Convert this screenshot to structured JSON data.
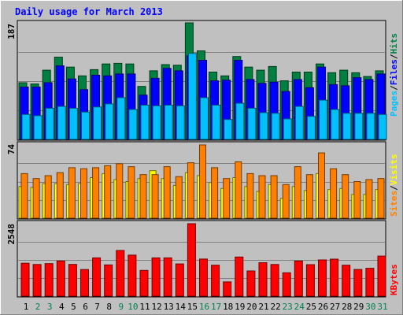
{
  "chart_data": [
    {
      "type": "bar",
      "panel": "pages-files-hits",
      "title": "Daily usage for March 2013",
      "categories": [
        "1",
        "2",
        "3",
        "4",
        "5",
        "6",
        "7",
        "8",
        "9",
        "10",
        "11",
        "12",
        "13",
        "14",
        "15",
        "16",
        "17",
        "18",
        "19",
        "20",
        "21",
        "22",
        "23",
        "24",
        "25",
        "26",
        "27",
        "28",
        "29",
        "30",
        "31"
      ],
      "ylim": [
        0,
        187
      ],
      "ymax_label": "187",
      "series": [
        {
          "name": "Hits",
          "color": "#008040",
          "values": [
            91,
            89,
            111,
            132,
            116,
            102,
            112,
            121,
            122,
            121,
            85,
            110,
            120,
            119,
            187,
            142,
            108,
            102,
            133,
            116,
            111,
            117,
            94,
            108,
            108,
            121,
            107,
            111,
            107,
            101,
            110
          ]
        },
        {
          "name": "Files",
          "color": "#0000ff",
          "values": [
            84,
            84,
            91,
            118,
            97,
            80,
            103,
            102,
            105,
            105,
            71,
            98,
            114,
            110,
            134,
            127,
            94,
            95,
            127,
            96,
            90,
            92,
            77,
            96,
            83,
            116,
            88,
            86,
            99,
            96,
            105
          ]
        },
        {
          "name": "Pages",
          "color": "#00c0ff",
          "values": [
            40,
            38,
            50,
            53,
            50,
            44,
            52,
            57,
            67,
            48,
            55,
            54,
            55,
            54,
            138,
            67,
            55,
            32,
            58,
            50,
            43,
            42,
            33,
            53,
            37,
            63,
            48,
            42,
            42,
            42,
            40
          ]
        }
      ]
    },
    {
      "type": "bar",
      "panel": "visits-sites",
      "categories": [
        "1",
        "2",
        "3",
        "4",
        "5",
        "6",
        "7",
        "8",
        "9",
        "10",
        "11",
        "12",
        "13",
        "14",
        "15",
        "16",
        "17",
        "18",
        "19",
        "20",
        "21",
        "22",
        "23",
        "24",
        "25",
        "26",
        "27",
        "28",
        "29",
        "30",
        "31"
      ],
      "ylim": [
        0,
        74
      ],
      "ymax_label": "74",
      "series": [
        {
          "name": "Visits",
          "color": "#ffff00",
          "values": [
            32,
            31,
            35,
            35,
            34,
            35,
            41,
            45,
            39,
            37,
            40,
            48,
            40,
            33,
            46,
            43,
            36,
            30,
            41,
            32,
            27,
            34,
            20,
            32,
            28,
            45,
            29,
            30,
            24,
            24,
            29
          ]
        },
        {
          "name": "Sites",
          "color": "#ff8000",
          "values": [
            45,
            40,
            43,
            46,
            51,
            50,
            51,
            53,
            55,
            52,
            44,
            44,
            52,
            42,
            56,
            74,
            51,
            40,
            57,
            45,
            43,
            43,
            34,
            52,
            44,
            66,
            50,
            44,
            37,
            39,
            40
          ]
        }
      ]
    },
    {
      "type": "bar",
      "panel": "kbytes",
      "categories": [
        "1",
        "2",
        "3",
        "4",
        "5",
        "6",
        "7",
        "8",
        "9",
        "10",
        "11",
        "12",
        "13",
        "14",
        "15",
        "16",
        "17",
        "18",
        "19",
        "20",
        "21",
        "22",
        "23",
        "24",
        "25",
        "26",
        "27",
        "28",
        "29",
        "30",
        "31"
      ],
      "ylim": [
        0,
        2548
      ],
      "ymax_label": "2548",
      "series": [
        {
          "name": "KBytes",
          "color": "#ff0000",
          "values": [
            1158,
            1112,
            1144,
            1235,
            1116,
            937,
            1347,
            1100,
            1606,
            1442,
            906,
            1347,
            1347,
            1134,
            2548,
            1304,
            1088,
            502,
            1377,
            885,
            1178,
            1112,
            822,
            1235,
            1108,
            1273,
            1303,
            1088,
            939,
            981,
            1409
          ]
        }
      ]
    }
  ],
  "legend": {
    "pages": "Pages",
    "files": "Files",
    "hits": "Hits",
    "sites": "Sites",
    "visits": "Visits",
    "kbytes": "KBytes",
    "separator": "/"
  },
  "colors": {
    "background": "#c0c0c0",
    "title": "#0000ff",
    "weekday_label": "#000000",
    "weekend_label": "#00804f",
    "weekend_days": [
      2,
      3,
      9,
      10,
      16,
      17,
      23,
      24,
      30,
      31
    ]
  }
}
